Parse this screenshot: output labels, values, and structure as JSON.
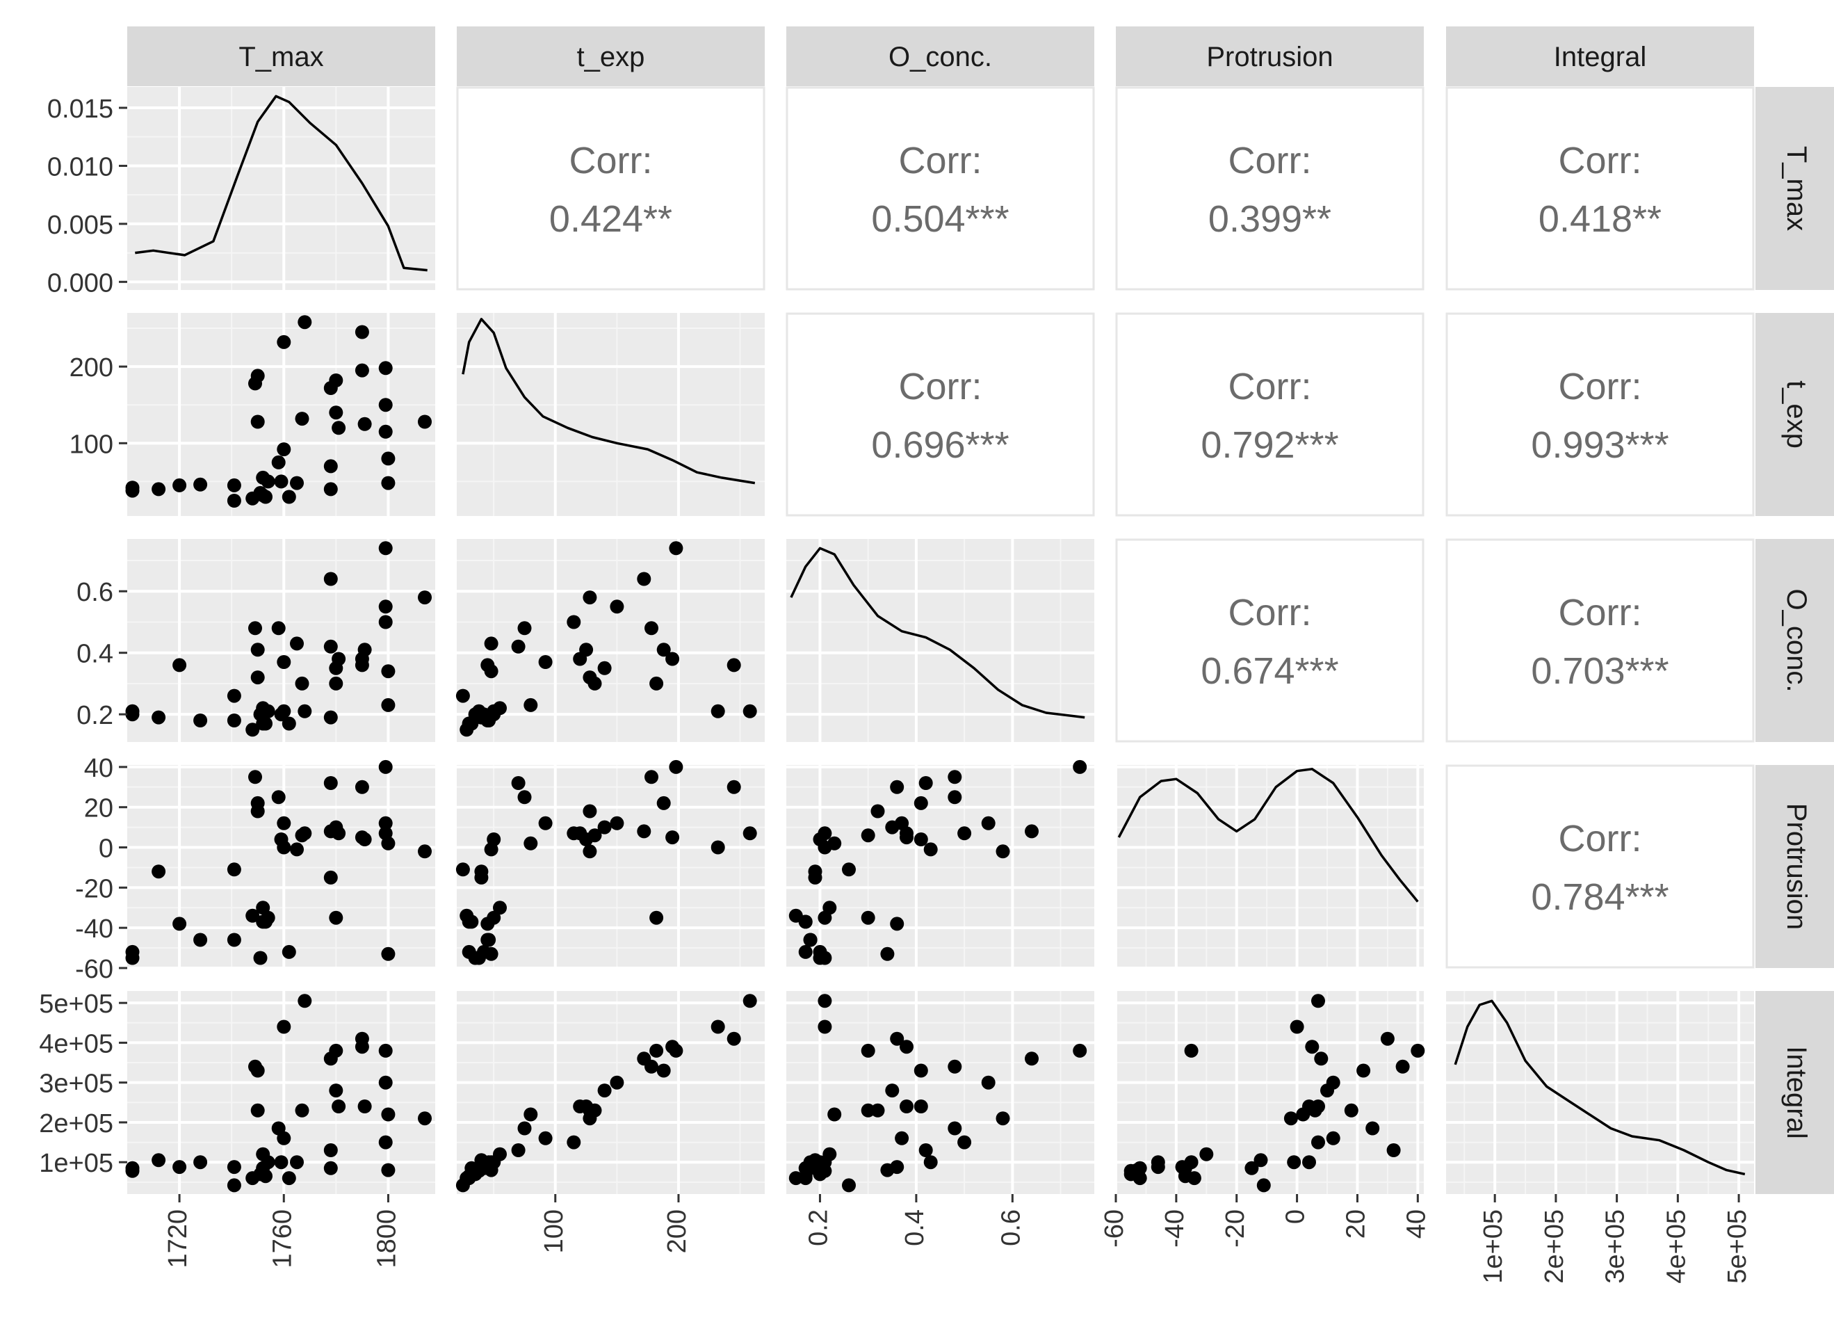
{
  "chart_data": {
    "type": "scatter-matrix",
    "variables": [
      "T_max",
      "t_exp",
      "O_conc.",
      "Protrusion",
      "Integral"
    ],
    "colors": {
      "strip": "#d9d9d9",
      "panel": "#ebebeb",
      "grid_major": "#ffffff",
      "grid_minor": "#f5f5f5",
      "corr_text": "#6b6b6b",
      "axis_text": "#333333",
      "point": "#000000",
      "line": "#000000",
      "corr_panel": "#ffffff",
      "corr_border": "#e6e6e6"
    },
    "axes": {
      "x": [
        {
          "range": [
            1700,
            1818
          ],
          "major": [
            1720,
            1760,
            1800
          ],
          "minor": [
            1700,
            1740,
            1780
          ],
          "labels": [
            "1720",
            "1760",
            "1800"
          ]
        },
        {
          "range": [
            20,
            270
          ],
          "major": [
            100,
            200
          ],
          "minor": [
            50,
            150,
            250
          ],
          "labels": [
            "100",
            "200"
          ]
        },
        {
          "range": [
            0.13,
            0.77
          ],
          "major": [
            0.2,
            0.4,
            0.6
          ],
          "minor": [
            0.3,
            0.5,
            0.7
          ],
          "labels": [
            "0.2",
            "0.4",
            "0.6"
          ]
        },
        {
          "range": [
            -60,
            42
          ],
          "major": [
            -60,
            -40,
            -20,
            0,
            20,
            40
          ],
          "minor": [
            -50,
            -30,
            -10,
            10,
            30
          ],
          "labels": [
            "-60",
            "-40",
            "-20",
            "0",
            "20",
            "40"
          ]
        },
        {
          "range": [
            20000,
            525000
          ],
          "major": [
            100000,
            200000,
            300000,
            400000,
            500000
          ],
          "minor": [
            50000,
            150000,
            250000,
            350000,
            450000
          ],
          "labels": [
            "1e+05",
            "2e+05",
            "3e+05",
            "4e+05",
            "5e+05"
          ]
        }
      ],
      "y": [
        {
          "range": [
            -0.0007,
            0.0168
          ],
          "major": [
            0.0,
            0.005,
            0.01,
            0.015
          ],
          "minor": [
            0.0025,
            0.0075,
            0.0125
          ],
          "labels": [
            "0.000",
            "0.005",
            "0.010",
            "0.015"
          ]
        },
        {
          "range": [
            5,
            270
          ],
          "major": [
            100,
            200
          ],
          "minor": [
            50,
            150,
            250
          ],
          "labels": [
            "100",
            "200"
          ]
        },
        {
          "range": [
            0.11,
            0.77
          ],
          "major": [
            0.2,
            0.4,
            0.6
          ],
          "minor": [
            0.3,
            0.5,
            0.7
          ],
          "labels": [
            "0.2",
            "0.4",
            "0.6"
          ]
        },
        {
          "range": [
            -60,
            41
          ],
          "major": [
            -60,
            -40,
            -20,
            0,
            20,
            40
          ],
          "minor": [
            -50,
            -30,
            -10,
            10,
            30
          ],
          "labels": [
            "-60",
            "-40",
            "-20",
            "0",
            "20",
            "40"
          ]
        },
        {
          "range": [
            20000,
            530000
          ],
          "major": [
            100000,
            200000,
            300000,
            400000,
            500000
          ],
          "minor": [
            50000,
            150000,
            250000,
            350000,
            450000
          ],
          "labels": [
            "1e+05",
            "2e+05",
            "3e+05",
            "4e+05",
            "5e+05"
          ]
        }
      ]
    },
    "correlations": [
      {
        "row": 0,
        "col": 1,
        "label": "Corr:",
        "value": "0.424**"
      },
      {
        "row": 0,
        "col": 2,
        "label": "Corr:",
        "value": "0.504***"
      },
      {
        "row": 0,
        "col": 3,
        "label": "Corr:",
        "value": "0.399**"
      },
      {
        "row": 0,
        "col": 4,
        "label": "Corr:",
        "value": "0.418**"
      },
      {
        "row": 1,
        "col": 2,
        "label": "Corr:",
        "value": "0.696***"
      },
      {
        "row": 1,
        "col": 3,
        "label": "Corr:",
        "value": "0.792***"
      },
      {
        "row": 1,
        "col": 4,
        "label": "Corr:",
        "value": "0.993***"
      },
      {
        "row": 2,
        "col": 3,
        "label": "Corr:",
        "value": "0.674***"
      },
      {
        "row": 2,
        "col": 4,
        "label": "Corr:",
        "value": "0.703***"
      },
      {
        "row": 3,
        "col": 4,
        "label": "Corr:",
        "value": "0.784***"
      }
    ],
    "densities": [
      [
        [
          1703,
          0.0025
        ],
        [
          1710,
          0.0027
        ],
        [
          1722,
          0.0023
        ],
        [
          1733,
          0.0035
        ],
        [
          1742,
          0.009
        ],
        [
          1750,
          0.0138
        ],
        [
          1757,
          0.016
        ],
        [
          1762,
          0.0155
        ],
        [
          1770,
          0.0137
        ],
        [
          1780,
          0.0118
        ],
        [
          1790,
          0.0085
        ],
        [
          1800,
          0.0048
        ],
        [
          1806,
          0.0012
        ],
        [
          1815,
          0.001
        ]
      ],
      [
        [
          25,
          190
        ],
        [
          30,
          232
        ],
        [
          40,
          262
        ],
        [
          50,
          244
        ],
        [
          60,
          198
        ],
        [
          75,
          160
        ],
        [
          90,
          135
        ],
        [
          110,
          120
        ],
        [
          130,
          108
        ],
        [
          150,
          100
        ],
        [
          175,
          92
        ],
        [
          195,
          78
        ],
        [
          215,
          62
        ],
        [
          235,
          55
        ],
        [
          262,
          48
        ]
      ],
      [
        [
          0.14,
          0.58
        ],
        [
          0.17,
          0.68
        ],
        [
          0.2,
          0.74
        ],
        [
          0.23,
          0.72
        ],
        [
          0.27,
          0.62
        ],
        [
          0.32,
          0.52
        ],
        [
          0.37,
          0.47
        ],
        [
          0.42,
          0.45
        ],
        [
          0.47,
          0.41
        ],
        [
          0.52,
          0.35
        ],
        [
          0.57,
          0.28
        ],
        [
          0.62,
          0.23
        ],
        [
          0.67,
          0.205
        ],
        [
          0.75,
          0.19
        ]
      ],
      [
        [
          -59,
          5
        ],
        [
          -52,
          25
        ],
        [
          -45,
          33
        ],
        [
          -40,
          34
        ],
        [
          -33,
          27
        ],
        [
          -26,
          14
        ],
        [
          -20,
          8
        ],
        [
          -14,
          14
        ],
        [
          -7,
          30
        ],
        [
          0,
          38
        ],
        [
          5,
          39
        ],
        [
          12,
          32
        ],
        [
          20,
          15
        ],
        [
          28,
          -4
        ],
        [
          34,
          -16
        ],
        [
          40,
          -27
        ]
      ],
      [
        [
          35000,
          345000
        ],
        [
          55000,
          440000
        ],
        [
          75000,
          495000
        ],
        [
          95000,
          505000
        ],
        [
          120000,
          450000
        ],
        [
          150000,
          355000
        ],
        [
          185000,
          290000
        ],
        [
          220000,
          255000
        ],
        [
          255000,
          220000
        ],
        [
          290000,
          185000
        ],
        [
          325000,
          165000
        ],
        [
          370000,
          155000
        ],
        [
          410000,
          130000
        ],
        [
          450000,
          100000
        ],
        [
          480000,
          80000
        ],
        [
          510000,
          70000
        ]
      ]
    ],
    "observations": {
      "T_max": [
        1702,
        1702,
        1712,
        1720,
        1728,
        1741,
        1741,
        1748,
        1749,
        1750,
        1750,
        1751,
        1752,
        1752,
        1753,
        1754,
        1758,
        1759,
        1760,
        1760,
        1762,
        1765,
        1767,
        1768,
        1778,
        1778,
        1778,
        1780,
        1780,
        1781,
        1790,
        1790,
        1791,
        1799,
        1799,
        1799,
        1800,
        1800,
        1814
      ],
      "t_exp": [
        38,
        42,
        40,
        45,
        46,
        25,
        45,
        28,
        178,
        188,
        128,
        35,
        32,
        55,
        30,
        50,
        75,
        50,
        92,
        232,
        30,
        48,
        132,
        258,
        40,
        70,
        172,
        182,
        140,
        120,
        245,
        195,
        125,
        198,
        150,
        115,
        48,
        80,
        128
      ],
      "O_conc": [
        0.21,
        0.2,
        0.19,
        0.36,
        0.18,
        0.26,
        0.18,
        0.15,
        0.48,
        0.41,
        0.32,
        0.2,
        0.17,
        0.22,
        0.17,
        0.21,
        0.48,
        0.2,
        0.37,
        0.21,
        0.17,
        0.43,
        0.3,
        0.21,
        0.19,
        0.42,
        0.64,
        0.3,
        0.35,
        0.38,
        0.36,
        0.38,
        0.41,
        0.74,
        0.55,
        0.5,
        0.34,
        0.23,
        0.58
      ],
      "Protrusion": [
        -55,
        -52,
        -12,
        -38,
        -46,
        -11,
        -46,
        -34,
        35,
        22,
        18,
        -55,
        -37,
        -30,
        -37,
        -35,
        25,
        4,
        12,
        0,
        -52,
        -1,
        6,
        7,
        -15,
        32,
        8,
        -35,
        10,
        7,
        30,
        5,
        4,
        40,
        12,
        7,
        -53,
        2,
        -2
      ],
      "Integral": [
        78000,
        85000,
        105000,
        88000,
        100000,
        42000,
        88000,
        60000,
        340000,
        330000,
        230000,
        70000,
        85000,
        120000,
        65000,
        100000,
        185000,
        100000,
        160000,
        440000,
        60000,
        100000,
        230000,
        505000,
        85000,
        130000,
        360000,
        380000,
        280000,
        240000,
        410000,
        390000,
        240000,
        380000,
        300000,
        150000,
        80000,
        220000,
        210000
      ]
    }
  }
}
